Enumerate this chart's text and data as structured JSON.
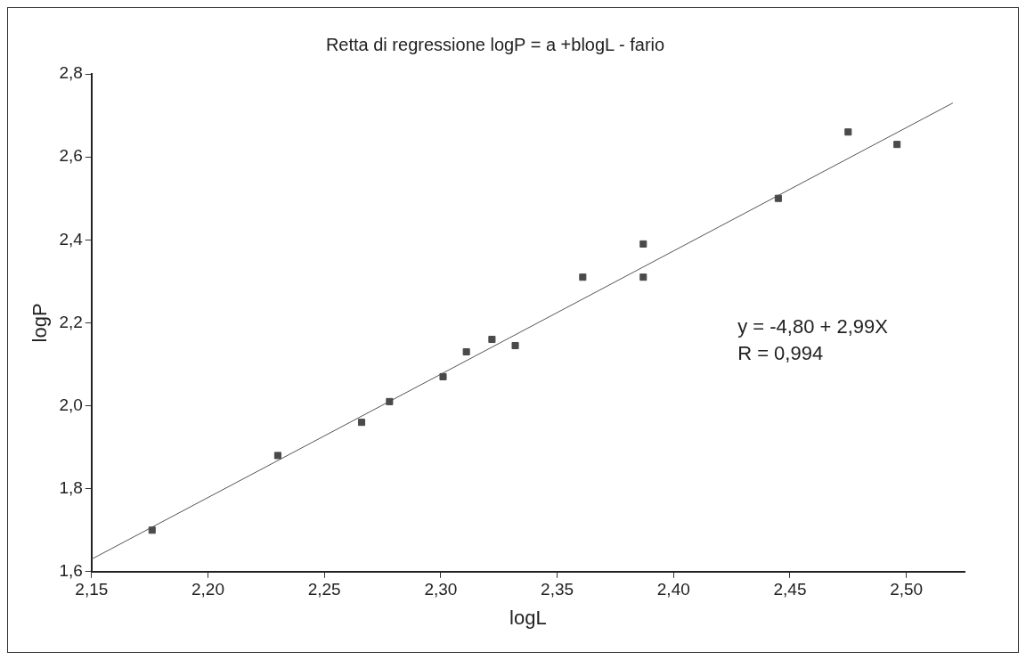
{
  "chart_data": {
    "type": "scatter",
    "title": "Retta di regressione logP = a +blogL - fario",
    "xlabel": "logL",
    "ylabel": "logP",
    "series": [
      {
        "color": "#4a4a4a",
        "marker": "square",
        "x": [
          2.176,
          2.23,
          2.266,
          2.278,
          2.301,
          2.311,
          2.322,
          2.332,
          2.361,
          2.387,
          2.387,
          2.445,
          2.475,
          2.496
        ],
        "values": [
          1.7,
          1.88,
          1.96,
          2.01,
          2.07,
          2.13,
          2.16,
          2.145,
          2.31,
          2.39,
          2.31,
          2.5,
          2.66,
          2.63
        ]
      },
      {
        "type": "line",
        "color": "#555555",
        "line_style": "solid",
        "x": [
          2.15,
          2.52
        ],
        "values": [
          1.63,
          2.73
        ]
      }
    ],
    "xlim": [
      2.15,
      2.525
    ],
    "ylim": [
      1.6,
      2.8
    ],
    "xticks": [
      {
        "value": 2.15,
        "label": "2,15"
      },
      {
        "value": 2.2,
        "label": "2,20"
      },
      {
        "value": 2.25,
        "label": "2,25"
      },
      {
        "value": 2.3,
        "label": "2,30"
      },
      {
        "value": 2.35,
        "label": "2,35"
      },
      {
        "value": 2.4,
        "label": "2,40"
      },
      {
        "value": 2.45,
        "label": "2,45"
      },
      {
        "value": 2.5,
        "label": "2,50"
      }
    ],
    "yticks": [
      {
        "value": 1.6,
        "label": "1,6"
      },
      {
        "value": 1.8,
        "label": "1,8"
      },
      {
        "value": 2.0,
        "label": "2,0"
      },
      {
        "value": 2.2,
        "label": "2,2"
      },
      {
        "value": 2.4,
        "label": "2,4"
      },
      {
        "value": 2.6,
        "label": "2,6"
      },
      {
        "value": 2.8,
        "label": "2,8"
      }
    ],
    "annotations": [
      "y = -4,80 + 2,99X",
      "R = 0,994"
    ],
    "grid": false,
    "legend": false
  }
}
